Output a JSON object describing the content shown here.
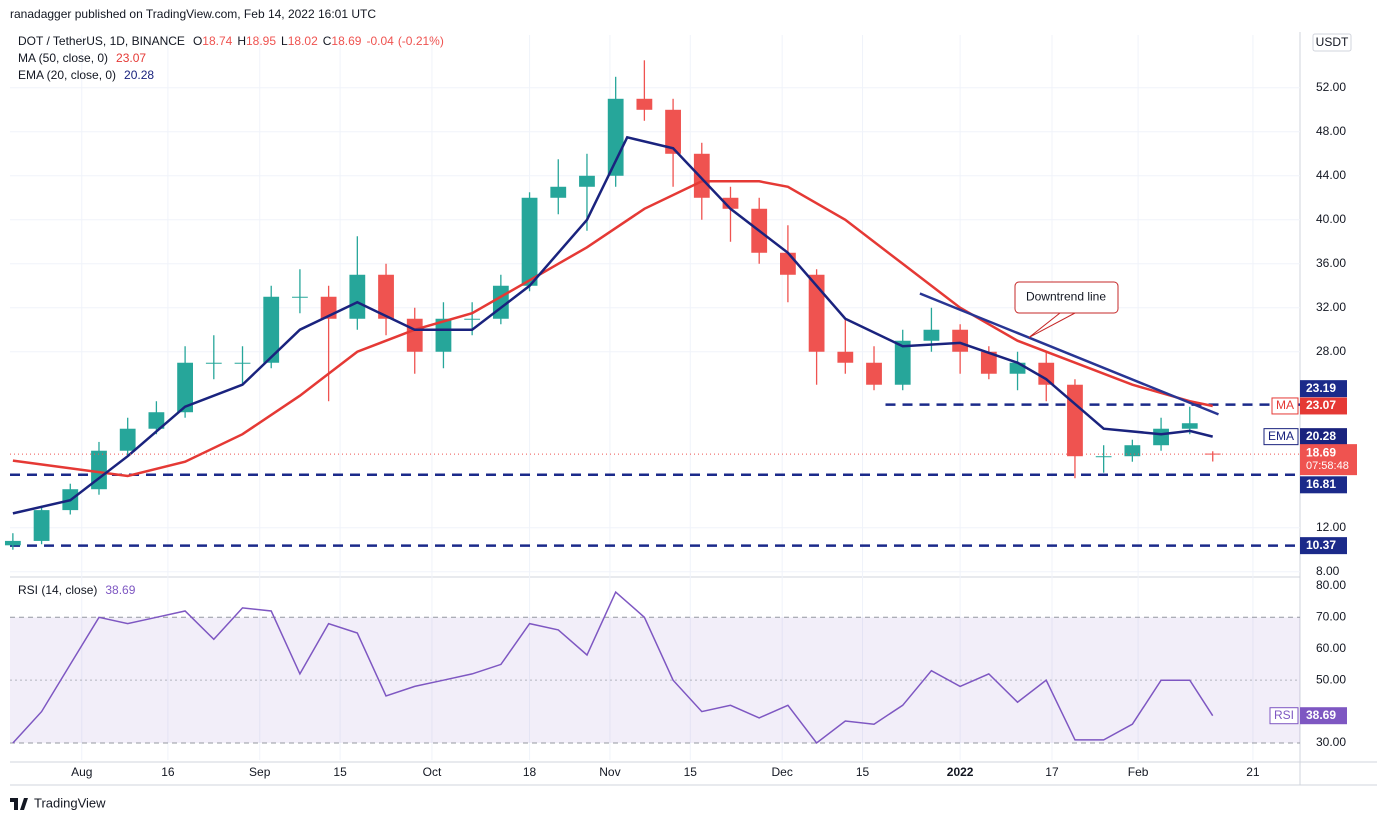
{
  "header": {
    "publisher": "ranadagger published on TradingView.com, Feb 14, 2022 16:01 UTC"
  },
  "footer": {
    "brand": "TradingView"
  },
  "chart_data": {
    "type": "candlestick",
    "symbol": "DOT / TetherUS, 1D, BINANCE",
    "currency": "USDT",
    "ohlc_letters": [
      "O",
      "H",
      "L",
      "C"
    ],
    "change": -0.04,
    "change_pct_label": "(-0.21%)",
    "countdown": "07:58:48",
    "x": [
      0,
      5,
      10,
      15,
      20,
      25,
      30,
      35,
      40,
      45,
      50,
      55,
      60,
      65,
      70,
      75,
      80,
      85,
      90,
      95,
      100,
      105,
      110,
      115,
      120,
      125,
      130,
      135,
      140,
      145,
      150,
      155,
      160,
      165,
      170,
      175,
      180,
      185,
      190,
      195,
      200,
      205,
      209
    ],
    "open": [
      10.4,
      10.8,
      13.6,
      15.5,
      19,
      21,
      22.5,
      27,
      27,
      27,
      33,
      33,
      31,
      35,
      31,
      28,
      31,
      31,
      34,
      42,
      43,
      44,
      51,
      50,
      46,
      42,
      41,
      37,
      35,
      28,
      27,
      25,
      29,
      30,
      28,
      26,
      27,
      25,
      18.5,
      18.5,
      19.5,
      21,
      18.74
    ],
    "high": [
      11.5,
      14,
      16,
      19.8,
      22,
      23.5,
      28.5,
      29.5,
      28.5,
      34,
      35.5,
      34,
      38.5,
      36,
      32,
      32.5,
      32.5,
      35,
      42.5,
      45.5,
      46,
      53,
      54.5,
      51,
      47,
      43,
      42,
      39.5,
      35.5,
      31,
      28.5,
      30,
      32,
      30.5,
      28.5,
      28,
      28,
      25.5,
      19.5,
      20,
      22,
      23,
      18.95
    ],
    "low": [
      10,
      10.5,
      13.2,
      15,
      18.5,
      20.5,
      22,
      25.5,
      25,
      26.5,
      31.5,
      23.5,
      30,
      29.5,
      26,
      26.5,
      29.5,
      30.5,
      33.5,
      40.5,
      39,
      43,
      49,
      43,
      40,
      38,
      36,
      32.5,
      25,
      26,
      24.5,
      24.5,
      28,
      26,
      25.5,
      24.5,
      23.5,
      16.5,
      17,
      18,
      19,
      20.5,
      18.02
    ],
    "close": [
      10.8,
      13.6,
      15.5,
      19,
      21,
      22.5,
      27,
      27,
      27,
      33,
      33,
      31,
      35,
      31,
      28,
      31,
      31,
      34,
      42,
      43,
      44,
      51,
      50,
      46,
      42,
      41,
      37,
      35,
      28,
      27,
      25,
      29,
      30,
      28,
      26,
      27,
      25,
      18.5,
      18.5,
      19.5,
      21,
      21.5,
      18.69
    ],
    "up_color": "#26a69a",
    "down_color": "#ef5350",
    "xlim": [
      -0.5,
      224.2
    ],
    "xticks": [
      {
        "value": 12,
        "label": "Aug"
      },
      {
        "value": 27,
        "label": "16"
      },
      {
        "value": 43,
        "label": "Sep"
      },
      {
        "value": 57,
        "label": "15"
      },
      {
        "value": 73,
        "label": "Oct"
      },
      {
        "value": 90,
        "label": "18"
      },
      {
        "value": 104,
        "label": "Nov"
      },
      {
        "value": 118,
        "label": "15"
      },
      {
        "value": 134,
        "label": "Dec"
      },
      {
        "value": 148,
        "label": "15"
      },
      {
        "value": 165,
        "label": "2022"
      },
      {
        "value": 181,
        "label": "17"
      },
      {
        "value": 196,
        "label": "Feb"
      },
      {
        "value": 216,
        "label": "21"
      }
    ],
    "ylim": [
      7.7,
      56.8
    ],
    "yticks": [
      {
        "value": 8,
        "label": "8.00"
      },
      {
        "value": 12,
        "label": "12.00"
      },
      {
        "value": 28,
        "label": "28.00"
      },
      {
        "value": 32,
        "label": "32.00"
      },
      {
        "value": 36,
        "label": "36.00"
      },
      {
        "value": 40,
        "label": "40.00"
      },
      {
        "value": 44,
        "label": "44.00"
      },
      {
        "value": 48,
        "label": "48.00"
      },
      {
        "value": 52,
        "label": "52.00"
      }
    ],
    "indicators": [
      {
        "name": "MA",
        "label": "MA (50, close, 0)",
        "color": "#e53935",
        "x": [
          0,
          20,
          30,
          40,
          50,
          60,
          70,
          80,
          90,
          100,
          110,
          120,
          130,
          135,
          145,
          155,
          165,
          175,
          185,
          195,
          205,
          209
        ],
        "values": [
          18.1,
          16.7,
          18,
          20.5,
          24,
          28,
          30,
          31.5,
          34.5,
          37.5,
          41,
          43.5,
          43.5,
          43,
          40,
          36,
          32,
          29,
          27,
          25,
          23.5,
          23.07
        ]
      },
      {
        "name": "EMA",
        "label": "EMA (20, close, 0)",
        "color": "#1a237e",
        "x": [
          0,
          10,
          20,
          30,
          40,
          50,
          60,
          70,
          80,
          90,
          100,
          107,
          115,
          125,
          135,
          145,
          155,
          165,
          175,
          180,
          190,
          200,
          205,
          209
        ],
        "values": [
          13.3,
          14.5,
          18.5,
          23,
          25,
          30,
          32.5,
          30,
          30,
          34,
          40,
          47.5,
          46.5,
          41,
          37,
          31,
          28.5,
          28.8,
          27,
          25.5,
          21,
          20.5,
          20.8,
          20.28
        ]
      }
    ],
    "levels": [
      {
        "value": 23.19,
        "color": "#1b2a8a"
      },
      {
        "value": 16.81,
        "color": "#1b2a8a"
      },
      {
        "value": 10.37,
        "color": "#1b2a8a"
      }
    ],
    "downtrend_line": {
      "x": [
        158,
        210
      ],
      "values": [
        33.3,
        22.3
      ],
      "color": "#283593"
    },
    "annotation": {
      "text": "Downtrend line",
      "x": 177,
      "value": 29.3
    },
    "rsi": {
      "name": "RSI",
      "label": "RSI (14, close)",
      "color": "#7e57c2",
      "values": [
        30,
        40,
        55,
        70,
        68,
        70,
        72,
        63,
        73,
        72,
        52,
        68,
        65,
        45,
        48,
        50,
        52,
        55,
        68,
        66,
        58,
        78,
        70,
        50,
        40,
        42,
        38,
        42,
        30,
        37,
        36,
        42,
        53,
        48,
        52,
        43,
        50,
        31,
        31,
        36,
        50,
        50,
        38.69
      ],
      "ylim": [
        24.6,
        82.5
      ],
      "yticks": [
        {
          "value": 30,
          "label": "30.00"
        },
        {
          "value": 50,
          "label": "50.00"
        },
        {
          "value": 60,
          "label": "60.00"
        },
        {
          "value": 70,
          "label": "70.00"
        },
        {
          "value": 80,
          "label": "80.00"
        }
      ],
      "band": [
        30,
        70
      ],
      "midline": 50
    }
  }
}
